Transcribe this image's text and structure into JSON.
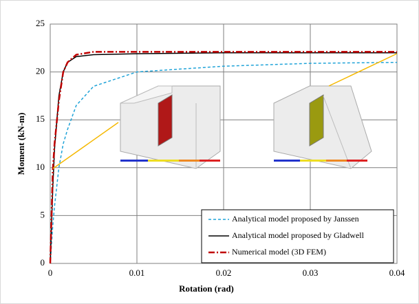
{
  "chart_data": {
    "type": "line",
    "xlabel": "Rotation (rad)",
    "ylabel": "Moment (kN-m)",
    "x": [
      0,
      0.0003,
      0.0005,
      0.001,
      0.0015,
      0.002,
      0.003,
      0.005,
      0.01,
      0.02,
      0.03,
      0.04
    ],
    "series": [
      {
        "name": "Analytical model proposed by Janssen",
        "color": "#1fa3d8",
        "dash": "4,3",
        "values": [
          0,
          4,
          6,
          10,
          12.5,
          14,
          16.5,
          18.5,
          20,
          20.6,
          20.9,
          21
        ]
      },
      {
        "name": "Analytical model proposed by Gladwell",
        "color": "#000000",
        "dash": "none",
        "values": [
          0,
          8,
          12,
          17.5,
          20,
          21,
          21.6,
          21.8,
          21.9,
          22,
          22,
          22
        ]
      },
      {
        "name": "Numerical model (3D FEM)",
        "color": "#c00000",
        "dash": "9,3,2,3",
        "values": [
          0,
          9.8,
          12.5,
          17,
          20,
          21,
          21.8,
          22.1,
          22.1,
          22.1,
          22.1,
          22.1
        ]
      }
    ],
    "xlim": [
      0,
      0.04
    ],
    "xticks": [
      0,
      0.01,
      0.02,
      0.03,
      0.04
    ],
    "ylim": [
      0,
      25
    ],
    "yticks": [
      0,
      5,
      10,
      15,
      20,
      25
    ],
    "grid": true,
    "legend": "lower right"
  }
}
